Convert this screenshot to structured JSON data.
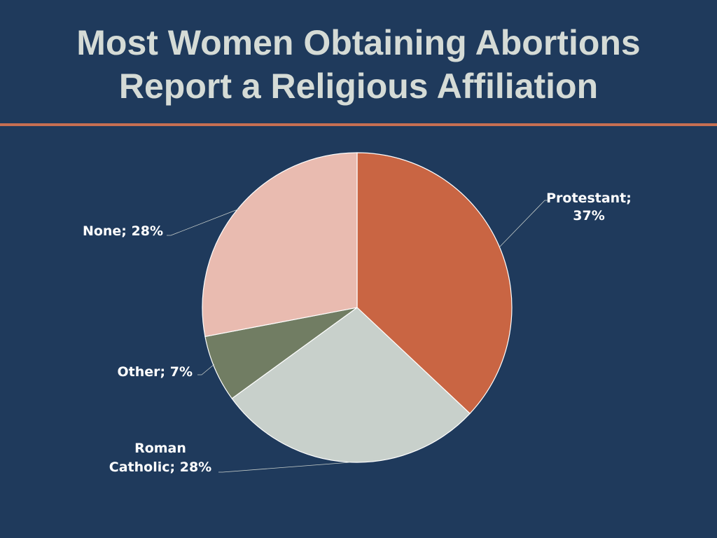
{
  "slide": {
    "title_line1": "Most Women Obtaining Abortions",
    "title_line2": "Report a Religious Affiliation"
  },
  "colors": {
    "background": "#1f3a5c",
    "title": "#d5dbd6",
    "rule": "#c66f52",
    "leader_line": "#c8cfcb"
  },
  "chart_data": {
    "type": "pie",
    "title": "Most Women Obtaining Abortions Report a Religious Affiliation",
    "start_angle_deg": 0,
    "direction": "clockwise",
    "label_format": "{name}; {value}%",
    "slices": [
      {
        "name": "Protestant",
        "value": 37,
        "color": "#c96543",
        "label_lines": [
          "Protestant;",
          "37%"
        ]
      },
      {
        "name": "Roman Catholic",
        "value": 28,
        "color": "#c8d0cb",
        "label_lines": [
          "Roman",
          "Catholic; 28%"
        ]
      },
      {
        "name": "Other",
        "value": 7,
        "color": "#717d63",
        "label_lines": [
          "Other; 7%"
        ]
      },
      {
        "name": "None",
        "value": 28,
        "color": "#e9bbb0",
        "label_lines": [
          "None; 28%"
        ]
      }
    ]
  }
}
